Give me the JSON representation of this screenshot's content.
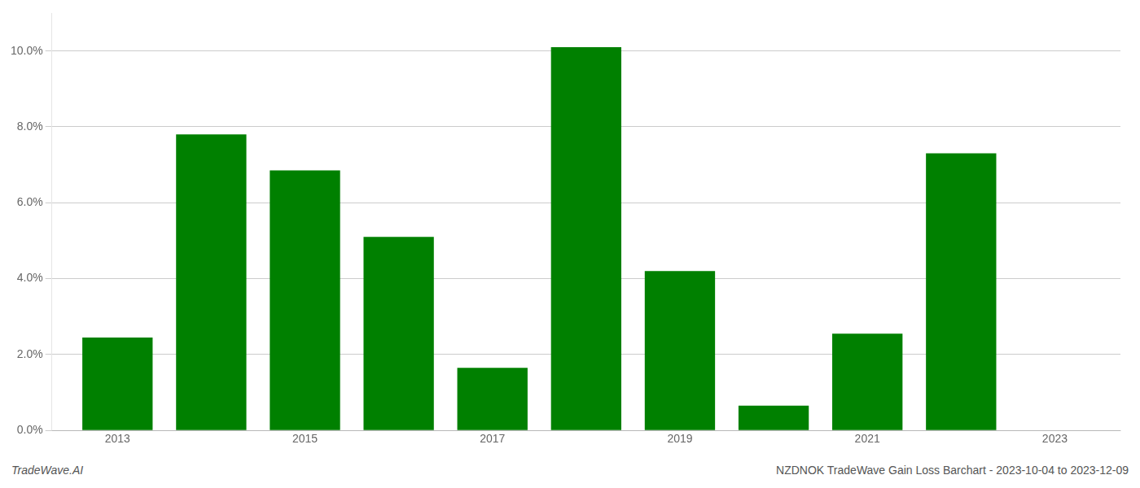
{
  "chart_data": {
    "type": "bar",
    "x": [
      2013,
      2014,
      2015,
      2016,
      2017,
      2018,
      2019,
      2020,
      2021,
      2022,
      2023
    ],
    "values": [
      0.0245,
      0.078,
      0.0685,
      0.051,
      0.0165,
      0.101,
      0.042,
      0.0065,
      0.0255,
      0.073,
      null
    ],
    "color": "#008000",
    "xlim": [
      2012.3,
      2023.7
    ],
    "xticks": [
      2013,
      2015,
      2017,
      2019,
      2021,
      2023
    ],
    "ylim": [
      0,
      0.11
    ],
    "yticks": [
      {
        "value": 0.0,
        "label": "0.0%"
      },
      {
        "value": 0.02,
        "label": "2.0%"
      },
      {
        "value": 0.04,
        "label": "4.0%"
      },
      {
        "value": 0.06,
        "label": "6.0%"
      },
      {
        "value": 0.08,
        "label": "8.0%"
      },
      {
        "value": 0.1,
        "label": "10.0%"
      }
    ],
    "grid": true,
    "annotations": [
      "TradeWave.AI",
      "NZDNOK TradeWave Gain Loss Barchart - 2023-10-04 to 2023-12-09"
    ]
  }
}
